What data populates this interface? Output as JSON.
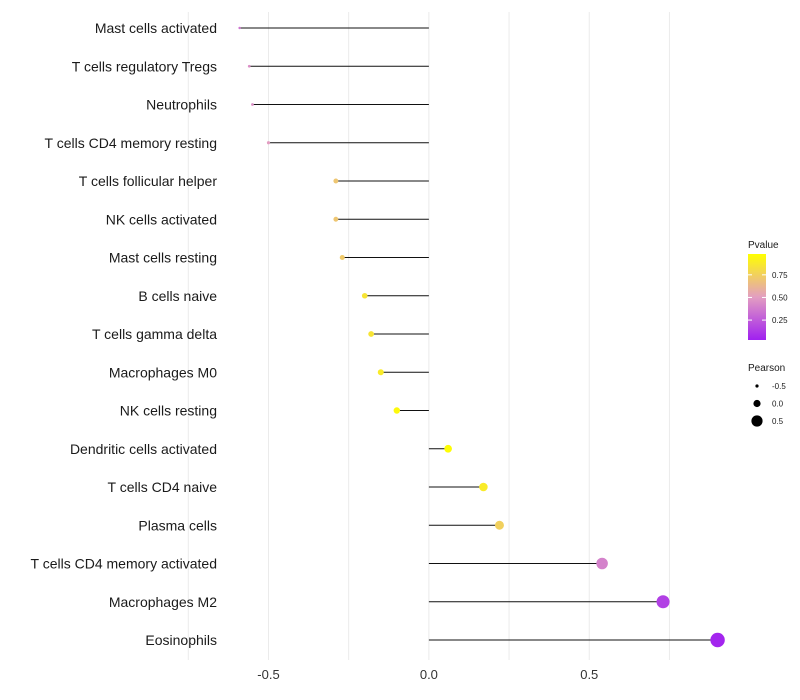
{
  "chart_data": {
    "type": "lollipop",
    "categories": [
      "Mast cells activated",
      "T cells regulatory  Tregs",
      "Neutrophils",
      "T cells CD4 memory resting",
      "T cells follicular helper",
      "NK cells activated",
      "Mast cells resting",
      "B cells naive",
      "T cells gamma delta",
      "Macrophages M0",
      "NK cells resting",
      "Dendritic cells activated",
      "T cells CD4 naive",
      "Plasma cells",
      "T cells CD4 memory activated",
      "Macrophages M2",
      "Eosinophils"
    ],
    "values": [
      -0.59,
      -0.56,
      -0.55,
      -0.5,
      -0.29,
      -0.29,
      -0.27,
      -0.2,
      -0.18,
      -0.15,
      -0.1,
      0.06,
      0.17,
      0.22,
      0.54,
      0.73,
      0.9
    ],
    "pvalues": [
      0.35,
      0.45,
      0.45,
      0.5,
      0.7,
      0.7,
      0.72,
      0.85,
      0.85,
      0.88,
      0.95,
      0.97,
      0.88,
      0.75,
      0.4,
      0.15,
      0.05
    ],
    "xlabel": "",
    "ylabel": "",
    "xlim": [
      -0.62,
      0.92
    ],
    "xticks": [
      {
        "value": -0.5,
        "label": "-0.5"
      },
      {
        "value": 0.0,
        "label": "0.0"
      },
      {
        "value": 0.5,
        "label": "0.5"
      }
    ],
    "legends": {
      "color": {
        "title": "Pvalue",
        "ticks": [
          {
            "value": 0.75,
            "label": "0.75"
          },
          {
            "value": 0.5,
            "label": "0.50"
          },
          {
            "value": 0.25,
            "label": "0.25"
          }
        ],
        "range": [
          0.03,
          0.98
        ],
        "low_color": "#a020f0",
        "mid_color": "#e39ec1",
        "high_color": "#ffff00"
      },
      "size": {
        "title": "Pearson",
        "entries": [
          {
            "value": -0.5,
            "label": "-0.5"
          },
          {
            "value": 0.0,
            "label": "0.0"
          },
          {
            "value": 0.5,
            "label": "0.5"
          }
        ]
      }
    },
    "grid": true,
    "legend_position": "right"
  }
}
